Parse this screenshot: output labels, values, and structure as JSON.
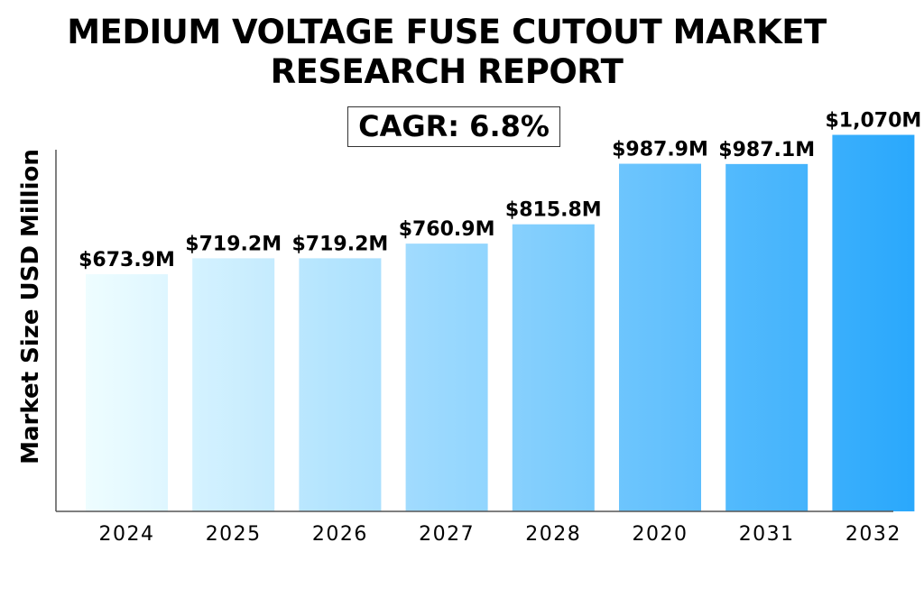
{
  "title": {
    "line1": "MEDIUM VOLTAGE FUSE CUTOUT MARKET",
    "line2": "RESEARCH REPORT"
  },
  "cagr_label": "CAGR: 6.8%",
  "colors": {
    "bar_lightest": "#eefdff",
    "bar_darkest": "#2aa8fc",
    "axis": "#555555"
  },
  "chart_data": {
    "type": "bar",
    "title": "MEDIUM VOLTAGE FUSE CUTOUT MARKET RESEARCH REPORT",
    "subtitle": "CAGR: 6.8%",
    "xlabel": "",
    "ylabel": "Market Size USD Million",
    "categories": [
      "2024",
      "2025",
      "2026",
      "2027",
      "2028",
      "2020",
      "2031",
      "2032"
    ],
    "values": [
      673.9,
      719.2,
      719.2,
      760.9,
      815.8,
      987.9,
      987.1,
      1070
    ],
    "value_labels": [
      "$673.9M",
      "$719.2M",
      "$719.2M",
      "$760.9M",
      "$815.8M",
      "$987.9M",
      "$987.1M",
      "$1,070M"
    ],
    "ylim": [
      0,
      1120
    ],
    "grid": false,
    "legend": "none"
  }
}
